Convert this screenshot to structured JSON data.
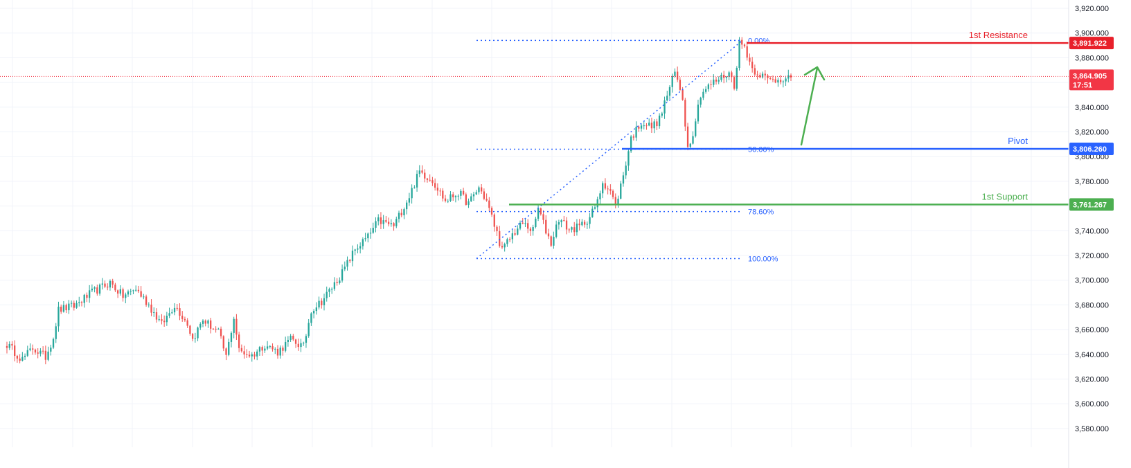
{
  "chart_data": {
    "type": "candlestick",
    "symbol_price": "3,864.905",
    "countdown": "17:51",
    "ylim": [
      3570,
      3925
    ],
    "y_ticks": [
      "3,920.000",
      "3,900.000",
      "3,880.000",
      "3,860.000",
      "3,840.000",
      "3,820.000",
      "3,800.000",
      "3,780.000",
      "3,760.000",
      "3,740.000",
      "3,720.000",
      "3,700.000",
      "3,680.000",
      "3,660.000",
      "3,640.000",
      "3,620.000",
      "3,600.000",
      "3,580.000"
    ],
    "y_tick_values": [
      3920,
      3900,
      3880,
      3860,
      3840,
      3820,
      3800,
      3780,
      3760,
      3740,
      3720,
      3700,
      3680,
      3660,
      3640,
      3620,
      3600,
      3580
    ],
    "current_price_value": 3864.905,
    "levels": [
      {
        "name": "1st Resistance",
        "value": 3891.922,
        "label": "3,891.922",
        "color": "#e8202a"
      },
      {
        "name": "Pivot",
        "value": 3806.26,
        "label": "3,806.260",
        "color": "#2962ff"
      },
      {
        "name": "1st Support",
        "value": 3761.267,
        "label": "3,761.267",
        "color": "#4caf50"
      }
    ],
    "fibonacci": [
      {
        "label": "0.00%",
        "value": 3894
      },
      {
        "label": "50.00%",
        "value": 3806
      },
      {
        "label": "78.60%",
        "value": 3755.5
      },
      {
        "label": "100.00%",
        "value": 3717.5
      }
    ],
    "anchors": [
      [
        0,
        3648
      ],
      [
        6,
        3636
      ],
      [
        10,
        3645
      ],
      [
        15,
        3638
      ],
      [
        18,
        3654
      ],
      [
        20,
        3676
      ],
      [
        26,
        3679
      ],
      [
        33,
        3690
      ],
      [
        40,
        3698
      ],
      [
        45,
        3687
      ],
      [
        50,
        3693
      ],
      [
        55,
        3680
      ],
      [
        60,
        3664
      ],
      [
        65,
        3680
      ],
      [
        70,
        3665
      ],
      [
        72,
        3652
      ],
      [
        76,
        3668
      ],
      [
        82,
        3658
      ],
      [
        85,
        3638
      ],
      [
        88,
        3670
      ],
      [
        90,
        3643
      ],
      [
        95,
        3639
      ],
      [
        100,
        3648
      ],
      [
        105,
        3642
      ],
      [
        110,
        3652
      ],
      [
        115,
        3646
      ],
      [
        118,
        3676
      ],
      [
        122,
        3683
      ],
      [
        126,
        3694
      ],
      [
        130,
        3706
      ],
      [
        135,
        3725
      ],
      [
        140,
        3735
      ],
      [
        144,
        3748
      ],
      [
        150,
        3744
      ],
      [
        156,
        3768
      ],
      [
        160,
        3788
      ],
      [
        165,
        3781
      ],
      [
        170,
        3764
      ],
      [
        175,
        3771
      ],
      [
        179,
        3762
      ],
      [
        183,
        3775
      ],
      [
        186,
        3764
      ],
      [
        190,
        3738
      ],
      [
        192,
        3724
      ],
      [
        196,
        3737
      ],
      [
        200,
        3746
      ],
      [
        204,
        3740
      ],
      [
        206,
        3758
      ],
      [
        209,
        3740
      ],
      [
        211,
        3730
      ],
      [
        214,
        3750
      ],
      [
        218,
        3741
      ],
      [
        222,
        3743
      ],
      [
        226,
        3751
      ],
      [
        229,
        3763
      ],
      [
        231,
        3780
      ],
      [
        234,
        3772
      ],
      [
        236,
        3760
      ],
      [
        239,
        3785
      ],
      [
        242,
        3815
      ],
      [
        246,
        3828
      ],
      [
        250,
        3824
      ],
      [
        253,
        3830
      ],
      [
        256,
        3850
      ],
      [
        259,
        3868
      ],
      [
        262,
        3848
      ],
      [
        264,
        3807
      ],
      [
        266,
        3820
      ],
      [
        269,
        3851
      ],
      [
        271,
        3855
      ],
      [
        274,
        3860
      ],
      [
        277,
        3864
      ],
      [
        280,
        3868
      ],
      [
        282,
        3858
      ],
      [
        284,
        3892
      ],
      [
        286,
        3889
      ],
      [
        289,
        3871
      ],
      [
        292,
        3867
      ],
      [
        295,
        3862
      ],
      [
        298,
        3862
      ],
      [
        300,
        3863
      ],
      [
        302,
        3865
      ],
      [
        304,
        3864
      ]
    ]
  },
  "colors": {
    "up": "#26a69a",
    "down": "#ef5350",
    "arrow": "#4caf50",
    "price_tag": "#f23645"
  }
}
